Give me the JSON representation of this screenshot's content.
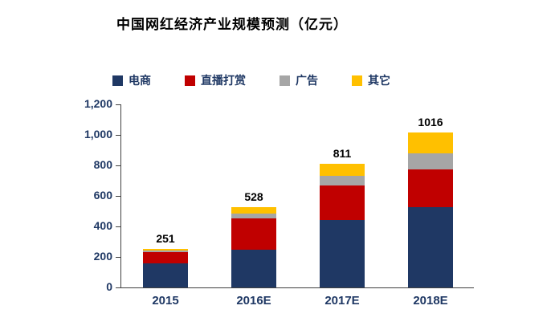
{
  "chart_data": {
    "type": "bar",
    "stacked": true,
    "title": "中国网红经济产业规模预测（亿元）",
    "categories": [
      "2015",
      "2016E",
      "2017E",
      "2018E"
    ],
    "series": [
      {
        "name": "电商",
        "color": "#1F3864",
        "values": [
          160,
          250,
          440,
          525
        ]
      },
      {
        "name": "直播打赏",
        "color": "#C00000",
        "values": [
          70,
          205,
          230,
          250
        ]
      },
      {
        "name": "广告",
        "color": "#A6A6A6",
        "values": [
          10,
          27,
          60,
          105
        ]
      },
      {
        "name": "其它",
        "color": "#FFC000",
        "values": [
          11,
          46,
          81,
          136
        ]
      }
    ],
    "totals": [
      251,
      528,
      811,
      1016
    ],
    "ylim": [
      0,
      1200
    ],
    "ytick_step": 200,
    "ytick_labels": [
      "0",
      "200",
      "400",
      "600",
      "800",
      "1,000",
      "1,200"
    ],
    "grid": false,
    "legend_position": "top",
    "axis_color": "#404040",
    "label_color": "#1F3864",
    "total_label_color": "#000000"
  }
}
